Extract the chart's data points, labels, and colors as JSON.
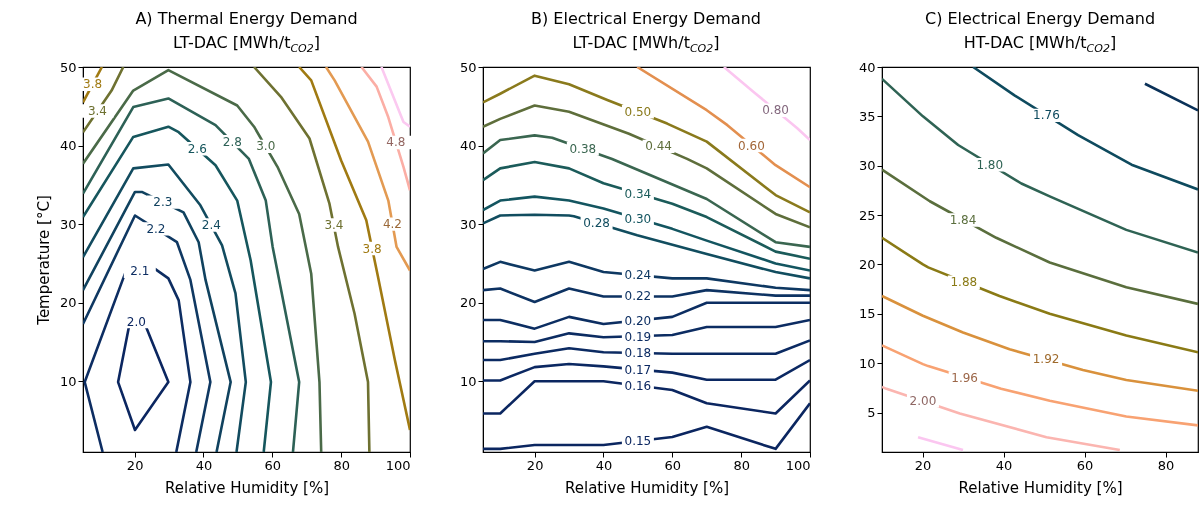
{
  "chart_data": [
    {
      "type": "line",
      "title": "A) Thermal Energy Demand",
      "subtitle": "LT-DAC [MWh/t$_{CO2}$]",
      "xlabel": "Relative Humidity [%]",
      "ylabel": "Temperature [°C]",
      "xlim": [
        5,
        100
      ],
      "ylim": [
        1,
        50
      ],
      "xticks": [
        20,
        40,
        60,
        80,
        100
      ],
      "yticks": [
        10,
        20,
        30,
        40,
        50
      ],
      "line_style": "solid",
      "series": [
        {
          "color": "#0b2660",
          "x": [
            18.6,
            15.2,
            20.1,
            29.8,
            22.5,
            20
          ],
          "values": [
            17.5,
            9.9,
            3.8,
            9.9,
            17.8,
            17.6
          ]
        },
        {
          "color": "#0d2d62",
          "x": [
            10.7,
            5.5,
            17.2,
            25.9,
            29.8,
            32.8,
            36.2,
            32.1
          ],
          "values": [
            1,
            9.9,
            23.7,
            24.3,
            23.1,
            20.3,
            9.9,
            1
          ]
        },
        {
          "color": "#0f3862",
          "x": [
            5,
            20.1,
            32.3,
            36.2,
            42,
            37.9
          ],
          "values": [
            17.3,
            31.1,
            27.7,
            22.9,
            9.9,
            1
          ]
        },
        {
          "color": "#10425f",
          "x": [
            5,
            20.1,
            22.1,
            34.2,
            38.6,
            40.6,
            47.9,
            43.8
          ],
          "values": [
            21.6,
            34.1,
            34.1,
            31.5,
            27.7,
            22.9,
            9.9,
            1
          ]
        },
        {
          "color": "#124b5f",
          "x": [
            5,
            19.6,
            29.8,
            39.1,
            45.4,
            49.3,
            52.3,
            49.6
          ],
          "values": [
            25.8,
            37.1,
            37.6,
            32.4,
            27.3,
            21.2,
            9.9,
            1
          ]
        },
        {
          "color": "#16565d",
          "x": [
            5,
            19.6,
            29.8,
            32.8,
            43.5,
            49.8,
            53.7,
            59.6,
            57.5
          ],
          "values": [
            30.9,
            41.1,
            42.4,
            41.7,
            37.5,
            33,
            25.4,
            9.9,
            1
          ]
        },
        {
          "color": "#2d6156",
          "x": [
            5,
            19.6,
            29.8,
            43.5,
            53.2,
            58.1,
            60.1,
            67.8,
            66
          ],
          "values": [
            33.9,
            44.9,
            46,
            42.6,
            38.3,
            33,
            27.1,
            9.9,
            1
          ]
        },
        {
          "color": "#4a6a48",
          "x": [
            5,
            19.6,
            29.8,
            49.8,
            54.7,
            61.5,
            67.8,
            71.3,
            73.7,
            74.2
          ],
          "values": [
            37.7,
            47,
            49.6,
            45.1,
            42.4,
            37.3,
            31.3,
            23.7,
            9.9,
            1
          ]
        },
        {
          "color": "#6e7131",
          "x": [
            5,
            13.3,
            16.7
          ],
          "values": [
            41.7,
            47,
            50
          ]
        },
        {
          "color": "#6e7131",
          "x": [
            54.7,
            62.5,
            70.8,
            76.6,
            79.1,
            83.9,
            87.8,
            88.2
          ],
          "values": [
            50,
            46.2,
            40.9,
            32.6,
            27.1,
            18.6,
            9.9,
            1
          ]
        },
        {
          "color": "#a07a12",
          "x": [
            5,
            10.5
          ],
          "values": [
            45.5,
            50
          ]
        },
        {
          "color": "#a07a12",
          "x": [
            67.8,
            71.3,
            80,
            87.3,
            90.7,
            95.6,
            100
          ],
          "values": [
            50,
            48.3,
            38.1,
            30.5,
            23.3,
            12.7,
            3.8
          ]
        },
        {
          "color": "#e39a52",
          "x": [
            75.6,
            78.1,
            87.8,
            93.7,
            96.1,
            100
          ],
          "values": [
            50,
            48.3,
            40.5,
            33,
            27.1,
            24.1
          ]
        },
        {
          "color": "#fbaea5",
          "x": [
            85.9,
            90.3,
            93.7,
            98.1,
            100
          ],
          "values": [
            50,
            47.5,
            43.6,
            37.3,
            34.3
          ]
        },
        {
          "color": "#fbc9f0",
          "x": [
            91.7,
            98.1,
            100
          ],
          "values": [
            50,
            43,
            42.4
          ]
        }
      ],
      "annotations": [
        {
          "text": "2.0",
          "x": 20.5,
          "y": 17.6
        },
        {
          "text": "2.1",
          "x": 21.5,
          "y": 24
        },
        {
          "text": "2.2",
          "x": 26.2,
          "y": 29.4
        },
        {
          "text": "2.3",
          "x": 28.2,
          "y": 32.8
        },
        {
          "text": "2.4",
          "x": 42.3,
          "y": 29.9
        },
        {
          "text": "2.6",
          "x": 38.2,
          "y": 39.6
        },
        {
          "text": "2.8",
          "x": 48.4,
          "y": 40.5
        },
        {
          "text": "3.0",
          "x": 58.1,
          "y": 39.9
        },
        {
          "text": "3.4",
          "x": 77.9,
          "y": 29.9
        },
        {
          "text": "3.4",
          "x": 9.2,
          "y": 44.4
        },
        {
          "text": "3.8",
          "x": 7.8,
          "y": 47.8
        },
        {
          "text": "3.8",
          "x": 89,
          "y": 26.9
        },
        {
          "text": "4.2",
          "x": 94.9,
          "y": 30
        },
        {
          "text": "4.8",
          "x": 95.9,
          "y": 40.4
        }
      ]
    },
    {
      "type": "line",
      "title": "B) Electrical Energy Demand",
      "subtitle": "LT-DAC [MWh/t$_{CO2}$]",
      "xlabel": "Relative Humidity [%]",
      "xlim": [
        5,
        100
      ],
      "ylim": [
        1,
        50
      ],
      "xticks": [
        20,
        40,
        60,
        80,
        100
      ],
      "yticks": [
        10,
        20,
        30,
        40,
        50
      ],
      "line_style": "solid",
      "series": [
        {
          "color": "#0b2660",
          "x": [
            5,
            10,
            20,
            40,
            60,
            70,
            90,
            100
          ],
          "values": [
            1.4,
            1.4,
            1.9,
            1.9,
            2.9,
            4.2,
            1.4,
            7.2
          ]
        },
        {
          "color": "#0b2660",
          "x": [
            5,
            10,
            20,
            40,
            60,
            70,
            90,
            100
          ],
          "values": [
            5.9,
            5.9,
            10,
            10,
            8.9,
            7.2,
            5.9,
            10.1
          ]
        },
        {
          "color": "#0b2862",
          "x": [
            5,
            10,
            20,
            30,
            40,
            60,
            70,
            90,
            100
          ],
          "values": [
            10.1,
            10.1,
            11.8,
            12.2,
            11.9,
            11.1,
            10.2,
            10.2,
            12.7
          ]
        },
        {
          "color": "#0b2a62",
          "x": [
            5,
            10,
            20,
            30,
            40,
            60,
            70,
            90,
            100
          ],
          "values": [
            12.7,
            12.7,
            13.5,
            14.2,
            13.7,
            13.5,
            13.5,
            13.5,
            15.2
          ]
        },
        {
          "color": "#0c2c62",
          "x": [
            5,
            10,
            20,
            30,
            40,
            60,
            70,
            90,
            100
          ],
          "values": [
            15.1,
            15.1,
            15,
            16.1,
            15.6,
            15.9,
            16.9,
            16.9,
            17.8
          ]
        },
        {
          "color": "#0c2e62",
          "x": [
            5,
            10,
            20,
            30,
            40,
            60,
            70,
            90,
            100
          ],
          "values": [
            17.8,
            17.8,
            16.7,
            18.2,
            17.3,
            18.2,
            20,
            20,
            20
          ]
        },
        {
          "color": "#0d3262",
          "x": [
            5,
            10,
            20,
            30,
            40,
            60,
            70,
            90,
            100
          ],
          "values": [
            21.6,
            21.8,
            20.1,
            21.8,
            20.8,
            20.8,
            21.6,
            20.9,
            20.9
          ]
        },
        {
          "color": "#0e3862",
          "x": [
            5,
            10,
            20,
            30,
            40,
            60,
            70,
            90,
            100
          ],
          "values": [
            24.3,
            25.2,
            24.1,
            25.2,
            23.9,
            23.1,
            23.1,
            21.9,
            21.6
          ]
        },
        {
          "color": "#114d5f",
          "x": [
            5,
            10,
            20,
            30,
            31.4,
            49.8,
            70,
            90,
            100
          ],
          "values": [
            30.1,
            31.1,
            31.2,
            31.1,
            31,
            28.6,
            26.2,
            23.9,
            23.1
          ]
        },
        {
          "color": "#135560",
          "x": [
            5,
            10,
            20,
            30,
            40,
            60,
            70,
            90,
            100
          ],
          "values": [
            31.8,
            33,
            33.5,
            33,
            32,
            29.4,
            27.9,
            25,
            24.1
          ]
        },
        {
          "color": "#1b5b5a",
          "x": [
            5,
            10,
            20,
            30,
            40,
            60,
            70,
            90,
            100
          ],
          "values": [
            35.6,
            37.1,
            37.9,
            37.1,
            35.2,
            32.6,
            30.9,
            26.5,
            25.6
          ]
        },
        {
          "color": "#3a6650",
          "x": [
            5,
            10,
            20,
            25.1,
            42.5,
            70,
            90,
            100
          ],
          "values": [
            39,
            40.7,
            41.3,
            41,
            38.3,
            33.2,
            27.7,
            27.1
          ]
        },
        {
          "color": "#5e6e3b",
          "x": [
            5,
            10,
            20,
            30,
            47.4,
            64.3,
            70,
            90,
            100
          ],
          "values": [
            42.4,
            43.4,
            45.1,
            44.3,
            41.5,
            38.3,
            37.1,
            31.3,
            29.6
          ]
        },
        {
          "color": "#8a7a1c",
          "x": [
            5,
            10,
            20,
            30,
            41.1,
            58.5,
            70,
            90,
            100
          ],
          "values": [
            45.5,
            46.6,
            48.9,
            47.8,
            45.8,
            42.8,
            40.5,
            33.7,
            31.5
          ]
        },
        {
          "color": "#e38f4f",
          "x": [
            49.8,
            70,
            76,
            90,
            100
          ],
          "values": [
            50,
            44.5,
            42.6,
            37.5,
            34.7
          ]
        },
        {
          "color": "#fbc6f0",
          "x": [
            75,
            83.7,
            96.3,
            100
          ],
          "values": [
            50,
            46.8,
            42.2,
            40.7
          ]
        }
      ],
      "annotations": [
        {
          "text": "0.15",
          "x": 50,
          "y": 2.4
        },
        {
          "text": "0.16",
          "x": 50,
          "y": 9.4
        },
        {
          "text": "0.17",
          "x": 50,
          "y": 11.5
        },
        {
          "text": "0.18",
          "x": 50,
          "y": 13.6
        },
        {
          "text": "0.19",
          "x": 50,
          "y": 15.7
        },
        {
          "text": "0.20",
          "x": 50,
          "y": 17.7
        },
        {
          "text": "0.22",
          "x": 50,
          "y": 20.8
        },
        {
          "text": "0.24",
          "x": 50,
          "y": 23.5
        },
        {
          "text": "0.28",
          "x": 38,
          "y": 30.1
        },
        {
          "text": "0.30",
          "x": 50,
          "y": 30.7
        },
        {
          "text": "0.34",
          "x": 50,
          "y": 33.9
        },
        {
          "text": "0.38",
          "x": 34,
          "y": 39.6
        },
        {
          "text": "0.44",
          "x": 56,
          "y": 39.9
        },
        {
          "text": "0.50",
          "x": 50,
          "y": 44.3
        },
        {
          "text": "0.60",
          "x": 83,
          "y": 40
        },
        {
          "text": "0.80",
          "x": 90,
          "y": 44.5
        }
      ]
    },
    {
      "type": "line",
      "title": "C) Electrical Energy Demand",
      "subtitle": "HT-DAC [MWh/t$_{CO2}$]",
      "xlabel": "Relative Humidity [%]",
      "xlim": [
        10,
        88
      ],
      "ylim": [
        1,
        40
      ],
      "xticks": [
        20,
        40,
        60,
        80
      ],
      "yticks": [
        5,
        10,
        15,
        20,
        25,
        30,
        35,
        40
      ],
      "line_style": "solid",
      "series": [
        {
          "color": "#0a3158",
          "x": [
            74.9,
            88
          ],
          "values": [
            38.3,
            35.6
          ]
        },
        {
          "color": "#0e4a5e",
          "x": [
            32.5,
            42.8,
            58.4,
            71.6,
            88
          ],
          "values": [
            40,
            37.1,
            33.1,
            30.1,
            27.6
          ]
        },
        {
          "color": "#2f6354",
          "x": [
            10,
            20.1,
            28.8,
            44.4,
            51.4,
            70.3,
            88
          ],
          "values": [
            38.8,
            35,
            32.1,
            28.2,
            26.9,
            23.5,
            21.2
          ]
        },
        {
          "color": "#5a6e3d",
          "x": [
            10,
            21.8,
            38.2,
            51.4,
            70.3,
            88
          ],
          "values": [
            29.6,
            26.4,
            22.7,
            20.2,
            17.7,
            16
          ]
        },
        {
          "color": "#8a7a15",
          "x": [
            10,
            20.1,
            21.4,
            39,
            51.4,
            70.3,
            88
          ],
          "values": [
            22.7,
            20,
            19.7,
            16.8,
            15,
            12.8,
            11.1
          ]
        },
        {
          "color": "#d9913c",
          "x": [
            10,
            20.1,
            30,
            41.5,
            59.6,
            70.3,
            88
          ],
          "values": [
            16.8,
            14.8,
            13.1,
            11.4,
            9.3,
            8.3,
            7.2
          ]
        },
        {
          "color": "#f8a272",
          "x": [
            10,
            20.1,
            21.4,
            39.4,
            51.4,
            70.3,
            88
          ],
          "values": [
            11.8,
            9.9,
            9.7,
            7.4,
            6.2,
            4.6,
            3.7
          ]
        },
        {
          "color": "#fbb5b0",
          "x": [
            10,
            11.1,
            29.2,
            50.6,
            68.7
          ],
          "values": [
            7.6,
            7.4,
            4.9,
            2.5,
            1.2
          ]
        },
        {
          "color": "#fbc6f0",
          "x": [
            18.9,
            30
          ],
          "values": [
            2.5,
            1.2
          ]
        }
      ],
      "annotations": [
        {
          "text": "1.76",
          "x": 50.6,
          "y": 35.1
        },
        {
          "text": "1.80",
          "x": 36.6,
          "y": 30.1
        },
        {
          "text": "1.84",
          "x": 30,
          "y": 24.5
        },
        {
          "text": "1.88",
          "x": 30.2,
          "y": 18.2
        },
        {
          "text": "1.92",
          "x": 50.5,
          "y": 10.4
        },
        {
          "text": "1.96",
          "x": 30.4,
          "y": 8.5
        },
        {
          "text": "2.00",
          "x": 20.1,
          "y": 6.2
        }
      ]
    }
  ]
}
